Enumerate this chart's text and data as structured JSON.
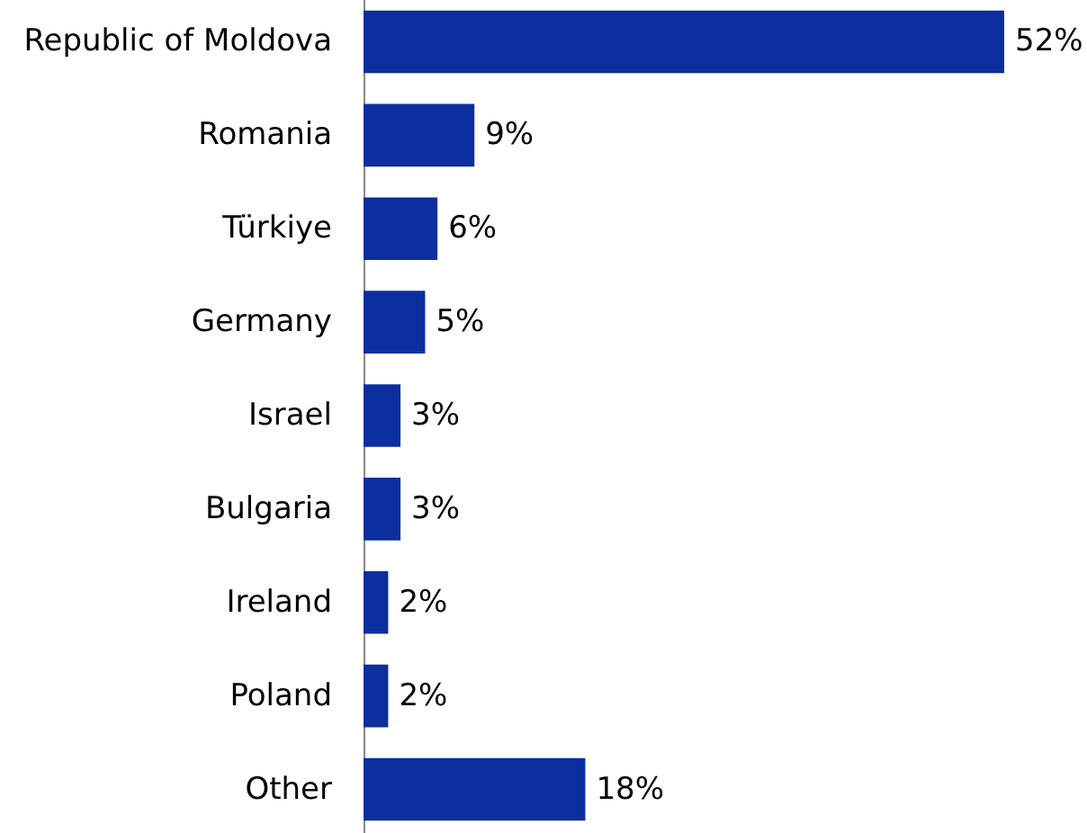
{
  "chart_data": {
    "type": "bar",
    "orientation": "horizontal",
    "categories": [
      "Republic of Moldova",
      "Romania",
      "Türkiye",
      "Germany",
      "Israel",
      "Bulgaria",
      "Ireland",
      "Poland",
      "Other"
    ],
    "values": [
      52,
      9,
      6,
      5,
      3,
      3,
      2,
      2,
      18
    ],
    "value_labels": [
      "52%",
      "9%",
      "6%",
      "5%",
      "3%",
      "3%",
      "2%",
      "2%",
      "18%"
    ],
    "color": "#0b2f9f",
    "tick_labels": "y"
  }
}
